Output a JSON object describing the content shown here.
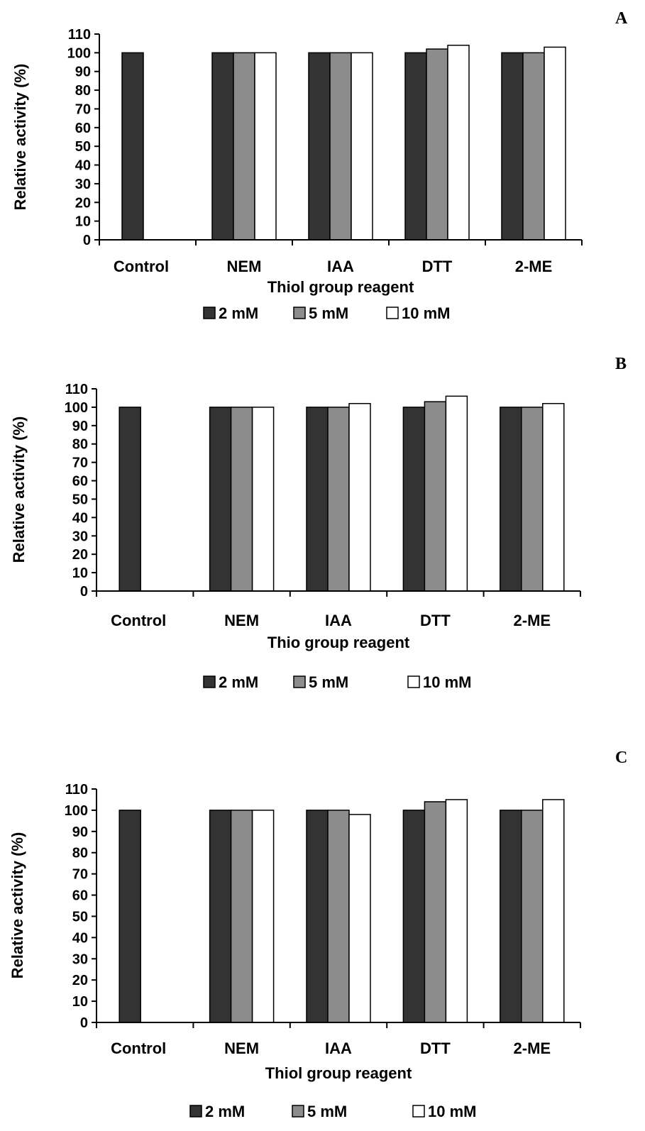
{
  "chart_data": [
    {
      "type": "bar",
      "panel_label": "A",
      "categories": [
        "Control",
        "NEM",
        "IAA",
        "DTT",
        "2-ME"
      ],
      "series": [
        {
          "name": "2 mM",
          "color": "#333333",
          "values": [
            100,
            100,
            100,
            100,
            100
          ]
        },
        {
          "name": "5 mM",
          "color": "#8c8c8c",
          "values": [
            null,
            100,
            100,
            102,
            100
          ]
        },
        {
          "name": "10 mM",
          "color": "#ffffff",
          "values": [
            null,
            100,
            100,
            104,
            103
          ]
        }
      ],
      "xlabel": "Thiol group reagent",
      "ylabel": "Relative activity (%)",
      "ylim": [
        0,
        110
      ],
      "yticks": [
        0,
        10,
        20,
        30,
        40,
        50,
        60,
        70,
        80,
        90,
        100,
        110
      ],
      "legend_position": "bottom",
      "grid": false
    },
    {
      "type": "bar",
      "panel_label": "B",
      "categories": [
        "Control",
        "NEM",
        "IAA",
        "DTT",
        "2-ME"
      ],
      "series": [
        {
          "name": "2 mM",
          "color": "#333333",
          "values": [
            100,
            100,
            100,
            100,
            100
          ]
        },
        {
          "name": "5 mM",
          "color": "#8c8c8c",
          "values": [
            null,
            100,
            100,
            103,
            100
          ]
        },
        {
          "name": "10 mM",
          "color": "#ffffff",
          "values": [
            null,
            100,
            102,
            106,
            102
          ]
        }
      ],
      "xlabel": "Thio group reagent",
      "ylabel": "Relative activity (%)",
      "ylim": [
        0,
        110
      ],
      "yticks": [
        0,
        10,
        20,
        30,
        40,
        50,
        60,
        70,
        80,
        90,
        100,
        110
      ],
      "legend_position": "bottom",
      "grid": false
    },
    {
      "type": "bar",
      "panel_label": "C",
      "categories": [
        "Control",
        "NEM",
        "IAA",
        "DTT",
        "2-ME"
      ],
      "series": [
        {
          "name": "2 mM",
          "color": "#333333",
          "values": [
            100,
            100,
            100,
            100,
            100
          ]
        },
        {
          "name": "5 mM",
          "color": "#8c8c8c",
          "values": [
            null,
            100,
            100,
            104,
            100
          ]
        },
        {
          "name": "10 mM",
          "color": "#ffffff",
          "values": [
            null,
            100,
            98,
            105,
            105
          ]
        }
      ],
      "xlabel": "Thiol group reagent",
      "ylabel": "Relative activity (%)",
      "ylim": [
        0,
        110
      ],
      "yticks": [
        0,
        10,
        20,
        30,
        40,
        50,
        60,
        70,
        80,
        90,
        100,
        110
      ],
      "legend_position": "bottom",
      "grid": false
    }
  ]
}
